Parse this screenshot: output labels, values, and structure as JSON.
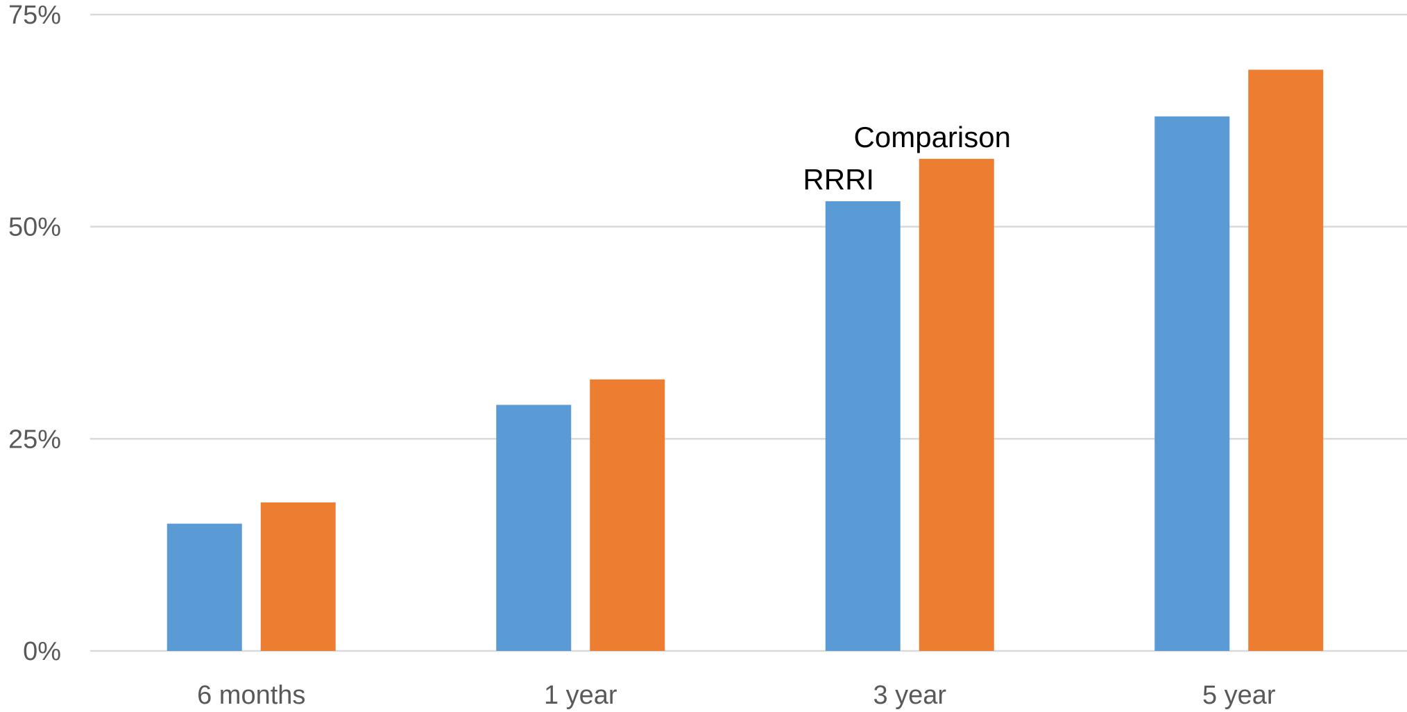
{
  "chart_data": {
    "type": "bar",
    "categories": [
      "6 months",
      "1 year",
      "3 year",
      "5 year"
    ],
    "series": [
      {
        "values": [
          15.0,
          29.0,
          53.0,
          63.0
        ]
      },
      {
        "values": [
          17.5,
          32.0,
          58.0,
          68.5
        ]
      }
    ],
    "ylim": [
      0,
      75
    ],
    "yticks": [
      0,
      25,
      50,
      75
    ],
    "ytick_labels": [
      "0%",
      "25%",
      "50%",
      "75%"
    ],
    "title": "",
    "xlabel": "",
    "ylabel": "",
    "grid": "horizontal",
    "legend": "none",
    "annotations": [
      {
        "text": "RRRI",
        "category": "3 year",
        "series_index": 0
      },
      {
        "text": "Comparison",
        "category": "3 year",
        "series_index": 1
      }
    ],
    "colors": [
      "#5b9bd5",
      "#ed7d31"
    ],
    "gridline_color": "#d9d9d9"
  }
}
